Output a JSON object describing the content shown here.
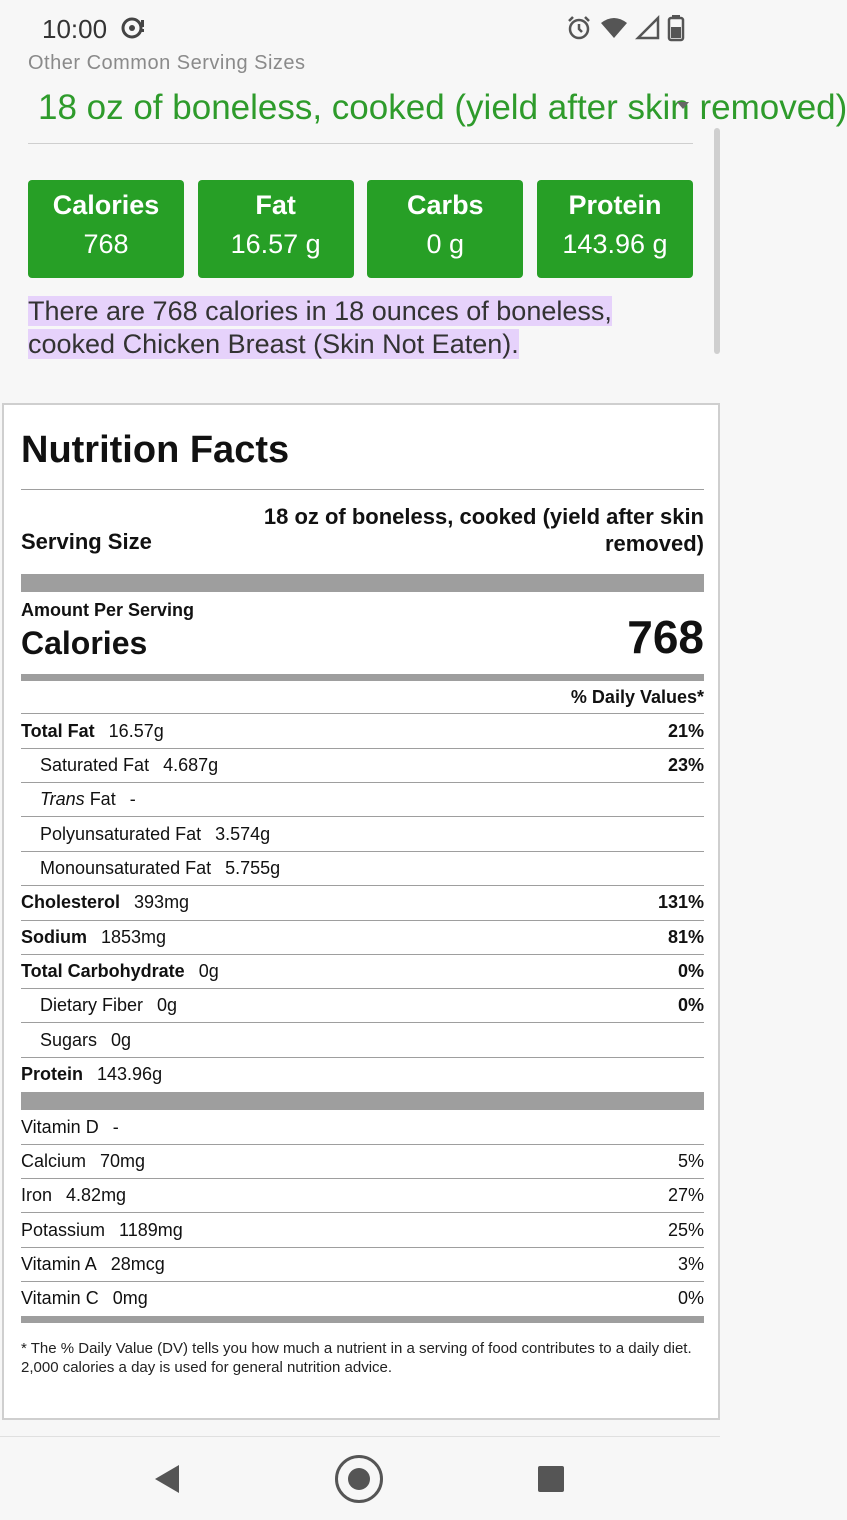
{
  "status_bar": {
    "time": "10:00"
  },
  "serving": {
    "label": "Other Common Serving Sizes",
    "selected": "18 oz of boneless, cooked (yield after skin removed)"
  },
  "macros": [
    {
      "label": "Calories",
      "value": "768"
    },
    {
      "label": "Fat",
      "value": "16.57 g"
    },
    {
      "label": "Carbs",
      "value": "0 g"
    },
    {
      "label": "Protein",
      "value": "143.96 g"
    }
  ],
  "summary": "There are 768 calories in 18 ounces of boneless, cooked Chicken Breast (Skin Not Eaten).",
  "nutrition_facts": {
    "title": "Nutrition Facts",
    "serving_size_label": "Serving Size",
    "serving_size_value": "18 oz of boneless, cooked (yield after skin removed)",
    "amount_per_serving": "Amount Per Serving",
    "calories_label": "Calories",
    "calories_value": "768",
    "dv_header": "% Daily Values*",
    "rows": [
      {
        "name": "Total Fat",
        "amount": "16.57g",
        "pct": "21%"
      },
      {
        "name": "Saturated Fat",
        "amount": "4.687g",
        "pct": "23%"
      },
      {
        "name_italic": "Trans",
        "name_rest": " Fat",
        "amount": "-",
        "pct": ""
      },
      {
        "name": "Polyunsaturated Fat",
        "amount": "3.574g",
        "pct": ""
      },
      {
        "name": "Monounsaturated Fat",
        "amount": "5.755g",
        "pct": ""
      },
      {
        "name": "Cholesterol",
        "amount": "393mg",
        "pct": "131%"
      },
      {
        "name": "Sodium",
        "amount": "1853mg",
        "pct": "81%"
      },
      {
        "name": "Total Carbohydrate",
        "amount": "0g",
        "pct": "0%"
      },
      {
        "name": "Dietary Fiber",
        "amount": "0g",
        "pct": "0%"
      },
      {
        "name": "Sugars",
        "amount": "0g",
        "pct": ""
      },
      {
        "name": "Protein",
        "amount": "143.96g",
        "pct": ""
      }
    ],
    "vitamins": [
      {
        "name": "Vitamin D",
        "amount": "-",
        "pct": ""
      },
      {
        "name": "Calcium",
        "amount": "70mg",
        "pct": "5%"
      },
      {
        "name": "Iron",
        "amount": "4.82mg",
        "pct": "27%"
      },
      {
        "name": "Potassium",
        "amount": "1189mg",
        "pct": "25%"
      },
      {
        "name": "Vitamin A",
        "amount": "28mcg",
        "pct": "3%"
      },
      {
        "name": "Vitamin C",
        "amount": "0mg",
        "pct": "0%"
      }
    ],
    "footnote": "* The % Daily Value (DV) tells you how much a nutrient in a serving of food contributes to a daily diet. 2,000 calories a day is used for general nutrition advice."
  },
  "colors": {
    "accent_green": "#279f26",
    "highlight": "#e6d2fb"
  },
  "icons": {
    "status_left": "cast-icon",
    "status_right": [
      "alarm-icon",
      "wifi-icon",
      "cell-signal-icon",
      "battery-icon"
    ],
    "nav": [
      "back-icon",
      "home-icon",
      "recents-icon"
    ]
  }
}
